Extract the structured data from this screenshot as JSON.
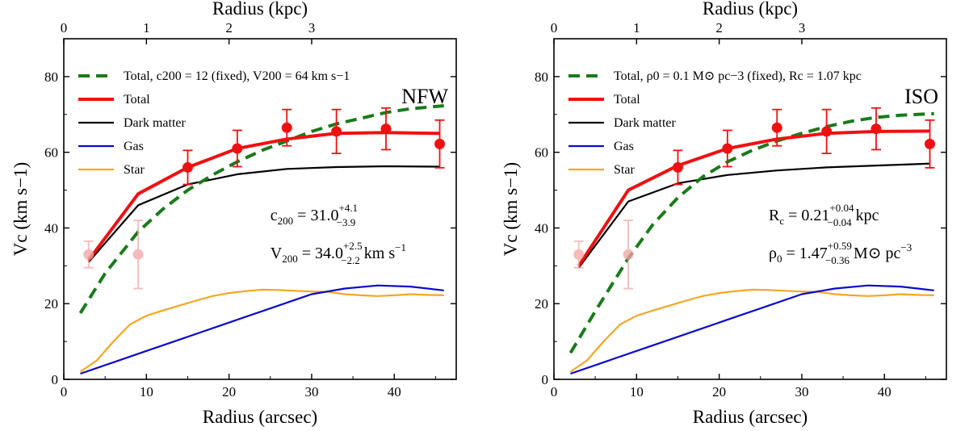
{
  "chart_data": [
    {
      "type": "line",
      "model_label": "NFW",
      "xlabel": "Radius (arcsec)",
      "ylabel": "Vc (km s−1)",
      "top_xlabel": "Radius (kpc)",
      "xlim": [
        0,
        47.5
      ],
      "ylim": [
        0,
        90
      ],
      "xticks": [
        0,
        10,
        20,
        30,
        40
      ],
      "yticks": [
        0,
        20,
        40,
        60,
        80
      ],
      "top_xticks": [
        {
          "label": "0",
          "arcsec": 0
        },
        {
          "label": "1",
          "arcsec": 10
        },
        {
          "label": "2",
          "arcsec": 20
        },
        {
          "label": "3",
          "arcsec": 30
        }
      ],
      "legend": [
        {
          "key": "total_fixed",
          "label": "Total, c200 = 12 (fixed), V200 = 64 km s−1",
          "color": "#1a7a1a",
          "dash": true
        },
        {
          "key": "total",
          "label": "Total",
          "color": "#f01010",
          "dash": false
        },
        {
          "key": "dark_matter",
          "label": "Dark matter",
          "color": "#000000",
          "dash": false
        },
        {
          "key": "gas",
          "label": "Gas",
          "color": "#0a0acc",
          "dash": false
        },
        {
          "key": "star",
          "label": "Star",
          "color": "#f5a623",
          "dash": false
        }
      ],
      "series": [
        {
          "name": "Total, fixed",
          "key": "total_fixed",
          "x": [
            2,
            5,
            9,
            12,
            15,
            18,
            21,
            24,
            27,
            30,
            33,
            36,
            39,
            42,
            46
          ],
          "y": [
            17.5,
            28,
            39,
            45,
            50,
            54,
            57.5,
            60.5,
            63,
            65.5,
            67.5,
            69,
            70.5,
            71.5,
            72.3
          ]
        },
        {
          "name": "Total",
          "key": "total",
          "x": [
            3,
            9,
            15,
            21,
            27,
            33,
            39,
            45.5
          ],
          "y": [
            31.5,
            49,
            56,
            61,
            63.5,
            65,
            65.2,
            65
          ]
        },
        {
          "name": "Dark matter",
          "key": "dark_matter",
          "x": [
            3,
            9,
            15,
            21,
            27,
            33,
            39,
            45.5
          ],
          "y": [
            31,
            46,
            51.5,
            54.2,
            55.6,
            56.1,
            56.3,
            56.2
          ]
        },
        {
          "name": "Gas",
          "key": "gas",
          "x": [
            2,
            6,
            10,
            14,
            18,
            22,
            26,
            30,
            34,
            38,
            42,
            46
          ],
          "y": [
            1.5,
            4.5,
            7.5,
            10.5,
            13.5,
            16.5,
            19.5,
            22.5,
            24,
            24.8,
            24.5,
            23.5
          ]
        },
        {
          "name": "Star",
          "key": "star",
          "x": [
            2,
            4,
            6,
            8,
            10,
            12,
            14,
            16,
            18,
            20,
            22,
            24,
            26,
            28,
            30,
            32,
            34,
            36,
            38,
            40,
            42,
            44,
            46
          ],
          "y": [
            2,
            5,
            10,
            14.5,
            16.8,
            18.2,
            19.5,
            20.8,
            22,
            22.8,
            23.3,
            23.7,
            23.6,
            23.4,
            23.2,
            23.1,
            22.5,
            22.2,
            22,
            22.2,
            22.5,
            22.3,
            22.2
          ]
        }
      ],
      "points": [
        {
          "x": 3,
          "y": 33,
          "err": 3.5,
          "faded": true
        },
        {
          "x": 9,
          "y": 33,
          "err": 9,
          "faded": true
        },
        {
          "x": 15,
          "y": 56,
          "err": 4.5,
          "faded": false
        },
        {
          "x": 21,
          "y": 61,
          "err": 4.8,
          "faded": false
        },
        {
          "x": 27,
          "y": 66.5,
          "err": 4.8,
          "faded": false
        },
        {
          "x": 33,
          "y": 65.5,
          "err": 5.8,
          "faded": false
        },
        {
          "x": 39,
          "y": 66.2,
          "err": 5.5,
          "faded": false
        },
        {
          "x": 45.5,
          "y": 62.2,
          "err": 6.3,
          "faded": false
        }
      ],
      "annotations": [
        {
          "symbol": "c",
          "subscript": "200",
          "text": " = 31.0",
          "sup": "+4.1",
          "sub": "−3.9",
          "unit": "",
          "unit_sup": "",
          "x": 25,
          "y": 42
        },
        {
          "symbol": "V",
          "subscript": "200",
          "text": " = 34.0",
          "sup": "+2.5",
          "sub": "−2.2",
          "unit": " km s",
          "unit_sup": "−1",
          "x": 25,
          "y": 32
        }
      ]
    },
    {
      "type": "line",
      "model_label": "ISO",
      "xlabel": "Radius (arcsec)",
      "ylabel": "Vc (km s−1)",
      "top_xlabel": "Radius (kpc)",
      "xlim": [
        0,
        47.5
      ],
      "ylim": [
        0,
        90
      ],
      "xticks": [
        0,
        10,
        20,
        30,
        40
      ],
      "yticks": [
        0,
        20,
        40,
        60,
        80
      ],
      "top_xticks": [
        {
          "label": "0",
          "arcsec": 0
        },
        {
          "label": "1",
          "arcsec": 10
        },
        {
          "label": "2",
          "arcsec": 20
        },
        {
          "label": "3",
          "arcsec": 30
        }
      ],
      "legend": [
        {
          "key": "total_fixed",
          "label": "Total, ρ0 = 0.1 M⊙ pc−3 (fixed), Rc = 1.07 kpc",
          "color": "#1a7a1a",
          "dash": true
        },
        {
          "key": "total",
          "label": "Total",
          "color": "#f01010",
          "dash": false
        },
        {
          "key": "dark_matter",
          "label": "Dark matter",
          "color": "#000000",
          "dash": false
        },
        {
          "key": "gas",
          "label": "Gas",
          "color": "#0a0acc",
          "dash": false
        },
        {
          "key": "star",
          "label": "Star",
          "color": "#f5a623",
          "dash": false
        }
      ],
      "series": [
        {
          "name": "Total, fixed",
          "key": "total_fixed",
          "x": [
            2,
            5,
            9,
            12,
            15,
            18,
            21,
            24,
            27,
            30,
            33,
            36,
            39,
            42,
            46
          ],
          "y": [
            7,
            18,
            32,
            41,
            48,
            53.5,
            57.5,
            60.5,
            63,
            65,
            66.8,
            68.2,
            69.2,
            69.8,
            70.2
          ]
        },
        {
          "name": "Total",
          "key": "total",
          "x": [
            3,
            9,
            15,
            21,
            27,
            33,
            39,
            45.5
          ],
          "y": [
            30,
            50,
            56.5,
            61,
            63.5,
            65,
            65.5,
            65.6
          ]
        },
        {
          "name": "Dark matter",
          "key": "dark_matter",
          "x": [
            3,
            9,
            15,
            21,
            27,
            33,
            39,
            45.5
          ],
          "y": [
            29.5,
            47,
            51.8,
            54,
            55.2,
            56,
            56.5,
            57
          ]
        },
        {
          "name": "Gas",
          "key": "gas",
          "x": [
            2,
            6,
            10,
            14,
            18,
            22,
            26,
            30,
            34,
            38,
            42,
            46
          ],
          "y": [
            1.5,
            4.5,
            7.5,
            10.5,
            13.5,
            16.5,
            19.5,
            22.5,
            24,
            24.8,
            24.5,
            23.5
          ]
        },
        {
          "name": "Star",
          "key": "star",
          "x": [
            2,
            4,
            6,
            8,
            10,
            12,
            14,
            16,
            18,
            20,
            22,
            24,
            26,
            28,
            30,
            32,
            34,
            36,
            38,
            40,
            42,
            44,
            46
          ],
          "y": [
            2,
            5,
            10,
            14.5,
            16.8,
            18.2,
            19.5,
            20.8,
            22,
            22.8,
            23.3,
            23.7,
            23.6,
            23.4,
            23.2,
            23.1,
            22.5,
            22.2,
            22,
            22.2,
            22.5,
            22.3,
            22.2
          ]
        }
      ],
      "points": [
        {
          "x": 3,
          "y": 33,
          "err": 3.5,
          "faded": true
        },
        {
          "x": 9,
          "y": 33,
          "err": 9,
          "faded": true
        },
        {
          "x": 15,
          "y": 56,
          "err": 4.5,
          "faded": false
        },
        {
          "x": 21,
          "y": 61,
          "err": 4.8,
          "faded": false
        },
        {
          "x": 27,
          "y": 66.5,
          "err": 4.8,
          "faded": false
        },
        {
          "x": 33,
          "y": 65.5,
          "err": 5.8,
          "faded": false
        },
        {
          "x": 39,
          "y": 66.2,
          "err": 5.5,
          "faded": false
        },
        {
          "x": 45.5,
          "y": 62.2,
          "err": 6.3,
          "faded": false
        }
      ],
      "annotations": [
        {
          "symbol": "R",
          "subscript": "c",
          "text": " = 0.21",
          "sup": "+0.04",
          "sub": "−0.04",
          "unit": " kpc",
          "unit_sup": "",
          "x": 26,
          "y": 42
        },
        {
          "symbol": "ρ",
          "subscript": "0",
          "text": " = 1.47",
          "sup": "+0.59",
          "sub": "−0.36",
          "unit": " M⊙ pc",
          "unit_sup": "−3",
          "x": 26,
          "y": 32
        }
      ]
    }
  ]
}
